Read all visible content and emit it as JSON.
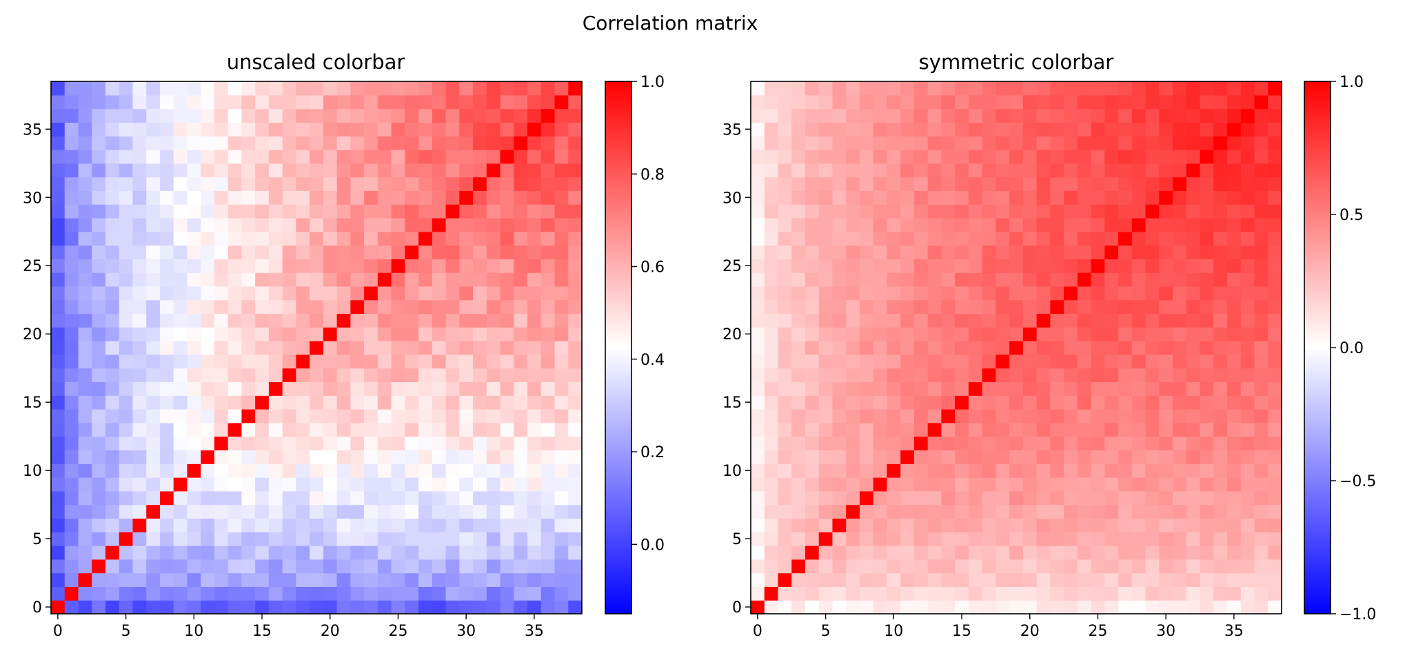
{
  "figure": {
    "title": "Correlation matrix"
  },
  "chart_data": [
    {
      "type": "heatmap",
      "title": "unscaled colorbar",
      "xlabel": "",
      "ylabel": "",
      "n": 39,
      "x_ticks": [
        "0",
        "5",
        "10",
        "15",
        "20",
        "25",
        "30",
        "35"
      ],
      "y_ticks": [
        "0",
        "5",
        "10",
        "15",
        "20",
        "25",
        "30",
        "35"
      ],
      "colormap": "bwr",
      "vmin": -0.15,
      "vmax": 1.0,
      "colorbar_ticks": [
        {
          "value": 1.0,
          "label": "1.0"
        },
        {
          "value": 0.8,
          "label": "0.8"
        },
        {
          "value": 0.6,
          "label": "0.6"
        },
        {
          "value": 0.4,
          "label": "0.4"
        },
        {
          "value": 0.2,
          "label": "0.2"
        },
        {
          "value": 0.0,
          "label": "0.0"
        }
      ],
      "diagonal_value": 1.0,
      "approx_pattern": "correlation increases with index; low-index rows/cols near 0.1-0.3, high-index block near 0.8-0.95"
    },
    {
      "type": "heatmap",
      "title": "symmetric colorbar",
      "xlabel": "",
      "ylabel": "",
      "n": 39,
      "x_ticks": [
        "0",
        "5",
        "10",
        "15",
        "20",
        "25",
        "30",
        "35"
      ],
      "y_ticks": [
        "0",
        "5",
        "10",
        "15",
        "20",
        "25",
        "30",
        "35"
      ],
      "colormap": "bwr",
      "vmin": -1.0,
      "vmax": 1.0,
      "colorbar_ticks": [
        {
          "value": 1.0,
          "label": "1.0"
        },
        {
          "value": 0.5,
          "label": "0.5"
        },
        {
          "value": 0.0,
          "label": "0.0"
        },
        {
          "value": -0.5,
          "label": "−0.5"
        },
        {
          "value": -1.0,
          "label": "−1.0"
        }
      ],
      "diagonal_value": 1.0,
      "approx_pattern": "same matrix as left panel shown on symmetric scale"
    }
  ],
  "colors": {
    "low": "#0000ff",
    "mid": "#ffffff",
    "high": "#ff0000"
  }
}
